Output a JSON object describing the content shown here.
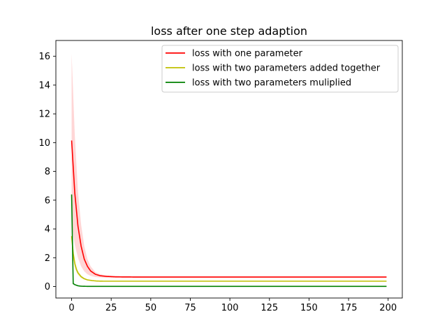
{
  "chart_data": {
    "type": "line",
    "title": "loss after one step adaption",
    "xlabel": "",
    "ylabel": "",
    "xlim": [
      -9.95,
      208.95
    ],
    "ylim": [
      -0.8,
      17.1
    ],
    "xticks": [
      0,
      25,
      50,
      75,
      100,
      125,
      150,
      175,
      200
    ],
    "yticks": [
      0,
      2,
      4,
      6,
      8,
      10,
      12,
      14,
      16
    ],
    "grid": false,
    "legend_position": "top-right",
    "x_max": 199,
    "series": [
      {
        "name": "loss with one parameter",
        "color": "#ff0000",
        "band_color": "#ffcccc",
        "points": [
          [
            0,
            10.15
          ],
          [
            2,
            6.5
          ],
          [
            4,
            4.2
          ],
          [
            6,
            2.8
          ],
          [
            8,
            1.9
          ],
          [
            10,
            1.4
          ],
          [
            12,
            1.08
          ],
          [
            15,
            0.85
          ],
          [
            18,
            0.75
          ],
          [
            22,
            0.7
          ],
          [
            28,
            0.67
          ],
          [
            40,
            0.66
          ],
          [
            199,
            0.66
          ]
        ],
        "band_upper": [
          [
            0,
            16.2
          ],
          [
            2,
            10.5
          ],
          [
            4,
            6.6
          ],
          [
            6,
            4.3
          ],
          [
            8,
            2.8
          ],
          [
            10,
            1.9
          ],
          [
            12,
            1.4
          ],
          [
            15,
            1.0
          ],
          [
            18,
            0.85
          ],
          [
            22,
            0.77
          ],
          [
            30,
            0.72
          ],
          [
            50,
            0.7
          ],
          [
            199,
            0.7
          ]
        ],
        "band_lower": [
          [
            0,
            4.5
          ],
          [
            2,
            2.9
          ],
          [
            4,
            2.0
          ],
          [
            6,
            1.4
          ],
          [
            8,
            1.05
          ],
          [
            10,
            0.85
          ],
          [
            12,
            0.74
          ],
          [
            15,
            0.66
          ],
          [
            18,
            0.63
          ],
          [
            22,
            0.62
          ],
          [
            30,
            0.61
          ],
          [
            199,
            0.61
          ]
        ]
      },
      {
        "name": "loss with two parameters added together",
        "color": "#bfbf00",
        "band_color": "#efefbf",
        "points": [
          [
            0,
            3.5
          ],
          [
            1,
            2.3
          ],
          [
            2,
            1.6
          ],
          [
            3,
            1.2
          ],
          [
            4,
            0.95
          ],
          [
            6,
            0.68
          ],
          [
            8,
            0.54
          ],
          [
            10,
            0.46
          ],
          [
            13,
            0.41
          ],
          [
            16,
            0.38
          ],
          [
            20,
            0.37
          ],
          [
            30,
            0.37
          ],
          [
            199,
            0.37
          ]
        ],
        "band_upper": [
          [
            0,
            4.0
          ],
          [
            1,
            2.7
          ],
          [
            2,
            1.9
          ],
          [
            3,
            1.4
          ],
          [
            4,
            1.1
          ],
          [
            6,
            0.78
          ],
          [
            8,
            0.6
          ],
          [
            10,
            0.5
          ],
          [
            13,
            0.43
          ],
          [
            16,
            0.4
          ],
          [
            20,
            0.38
          ],
          [
            30,
            0.38
          ],
          [
            199,
            0.38
          ]
        ],
        "band_lower": [
          [
            0,
            3.0
          ],
          [
            1,
            1.9
          ],
          [
            2,
            1.3
          ],
          [
            3,
            1.0
          ],
          [
            4,
            0.8
          ],
          [
            6,
            0.58
          ],
          [
            8,
            0.48
          ],
          [
            10,
            0.42
          ],
          [
            13,
            0.38
          ],
          [
            16,
            0.36
          ],
          [
            20,
            0.36
          ],
          [
            30,
            0.36
          ],
          [
            199,
            0.36
          ]
        ]
      },
      {
        "name": "loss with two parameters muliplied",
        "color": "#008000",
        "band_color": "#bfdfbf",
        "points": [
          [
            0,
            6.4
          ],
          [
            1,
            0.2
          ],
          [
            2,
            0.13
          ],
          [
            3,
            0.09
          ],
          [
            4,
            0.05
          ],
          [
            6,
            0.02
          ],
          [
            10,
            0.01
          ],
          [
            199,
            0.01
          ]
        ],
        "band_upper": [
          [
            0,
            6.6
          ],
          [
            1,
            0.24
          ],
          [
            2,
            0.16
          ],
          [
            3,
            0.11
          ],
          [
            4,
            0.07
          ],
          [
            6,
            0.03
          ],
          [
            10,
            0.015
          ],
          [
            199,
            0.015
          ]
        ],
        "band_lower": [
          [
            0,
            6.2
          ],
          [
            1,
            0.16
          ],
          [
            2,
            0.1
          ],
          [
            3,
            0.07
          ],
          [
            4,
            0.04
          ],
          [
            6,
            0.015
          ],
          [
            10,
            0.005
          ],
          [
            199,
            0.005
          ]
        ]
      }
    ]
  }
}
